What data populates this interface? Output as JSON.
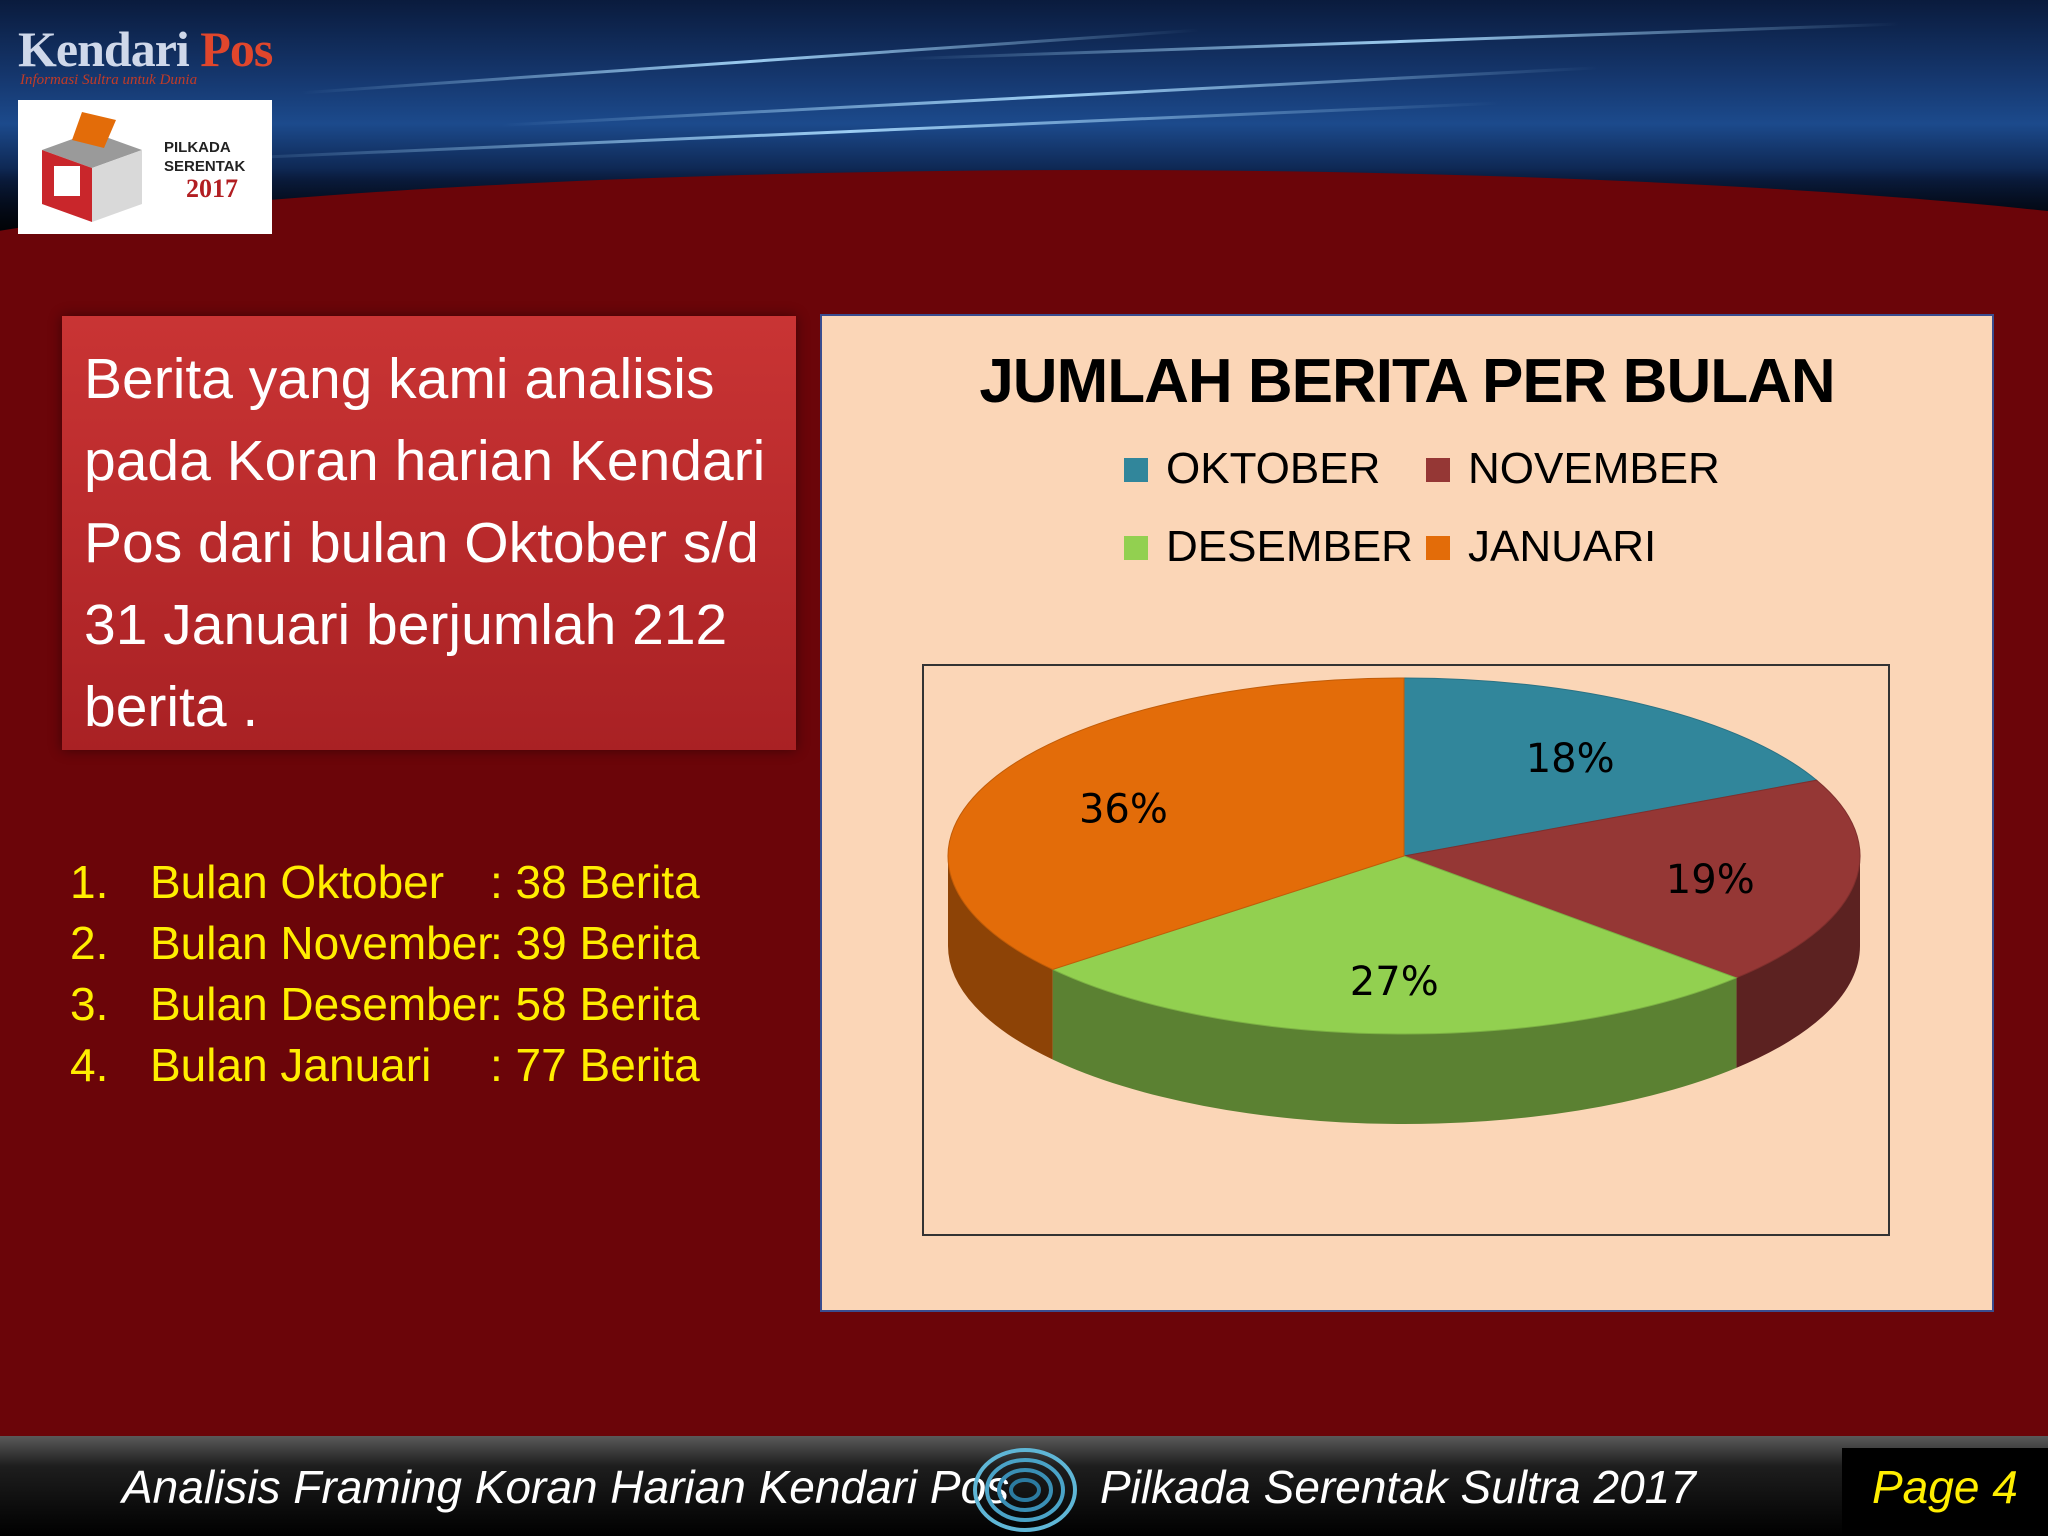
{
  "header": {
    "logo_main": "Kendari",
    "logo_accent": "Pos",
    "logo_tagline": "Informasi Sultra untuk Dunia",
    "badge_line1": "PILKADA",
    "badge_line2": "SERENTAK",
    "badge_year": "2017"
  },
  "intro_text": "Berita yang kami analisis pada Koran harian Kendari Pos dari bulan Oktober s/d 31 Januari berjumlah 212 berita .",
  "list": [
    {
      "num": "1.",
      "label": "Bulan Oktober",
      "value": ": 38 Berita"
    },
    {
      "num": "2.",
      "label": "Bulan November",
      "value": ": 39 Berita"
    },
    {
      "num": "3.",
      "label": "Bulan Desember",
      "value": ": 58 Berita"
    },
    {
      "num": "4.",
      "label": "Bulan Januari",
      "value": ": 77 Berita"
    }
  ],
  "chart_data": {
    "type": "pie",
    "title": "JUMLAH BERITA PER BULAN",
    "categories": [
      "OKTOBER",
      "NOVEMBER",
      "DESEMBER",
      "JANUARI"
    ],
    "values": [
      18,
      19,
      27,
      36
    ],
    "labels": [
      "18%",
      "19%",
      "27%",
      "36%"
    ],
    "colors": [
      "#31869b",
      "#953735",
      "#92d050",
      "#e36c09"
    ],
    "legend": "top",
    "style": "3d"
  },
  "footer": {
    "left": "Analisis Framing  Koran Harian Kendari Pos",
    "right": "Pilkada Serentak Sultra 2017",
    "page": "Page 4"
  }
}
